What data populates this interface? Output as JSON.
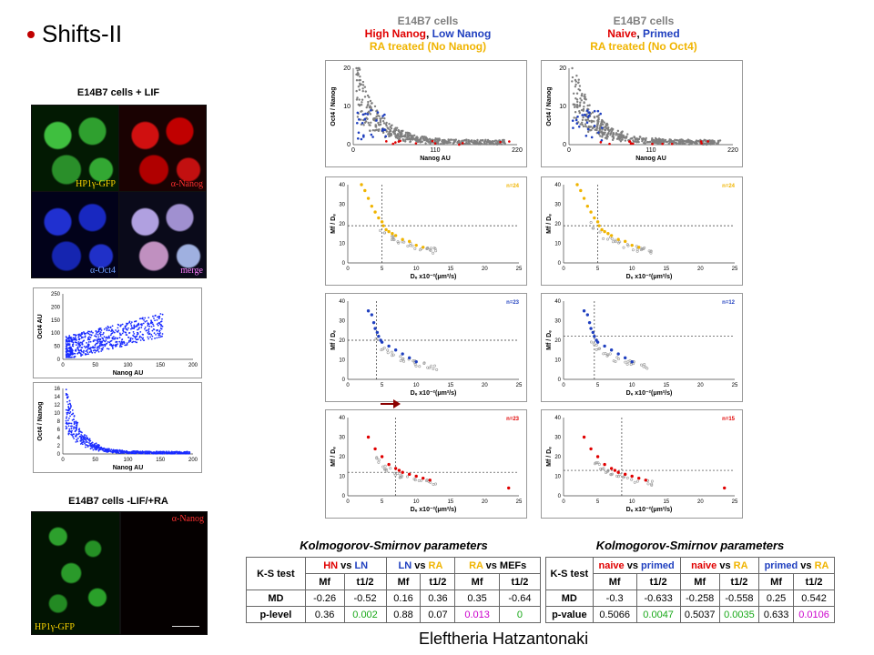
{
  "slide_title": "Shifts-II",
  "left": {
    "top_panel_title": "E14B7 cells + LIF",
    "micro_labels": [
      "HP1γ-GFP",
      "α-Nanog",
      "α-Oct4",
      "merge"
    ],
    "scatter1": {
      "ylabel": "Oct4 AU",
      "xlabel": "Nanog AU",
      "yticks": [
        "0",
        "50",
        "100",
        "150",
        "200",
        "250"
      ],
      "xticks": [
        "0",
        "50",
        "100",
        "150",
        "200"
      ]
    },
    "scatter2": {
      "ylabel": "Oct4 / Nanog",
      "xlabel": "Nanog AU",
      "yticks": [
        "0",
        "2",
        "4",
        "6",
        "8",
        "10",
        "12",
        "14",
        "16"
      ],
      "xticks": [
        "0",
        "50",
        "100",
        "150",
        "200"
      ]
    },
    "bottom_panel_title": "E14B7 cells -LIF/+RA",
    "bottom_labels": [
      "HP1γ-GFP",
      "α-Nanog"
    ]
  },
  "col1_header": {
    "line1": "E14B7 cells",
    "line2a": "High Nanog",
    "line2sep": ", ",
    "line2b": "Low Nanog",
    "line3": "RA treated (No Nanog)"
  },
  "col2_header": {
    "line1": "E14B7 cells",
    "line2a": "Naive",
    "line2sep": ", ",
    "line2b": "Primed",
    "line3": "RA treated (No Oct4)"
  },
  "colors": {
    "gray": "#7f7f7f",
    "red": "#e00000",
    "blue": "#1f3fbf",
    "gold": "#f0b400",
    "green": "#18a818",
    "magenta": "#cc00cc"
  },
  "chart_data": [
    {
      "type": "scatter",
      "id": "c1-ratio",
      "ylabel": "Oct4 / Nanog",
      "xlabel": "Nanog AU",
      "xticks": [
        "0",
        "110",
        "220"
      ],
      "yticks": [
        "0",
        "10",
        "20"
      ]
    },
    {
      "type": "scatter",
      "id": "c2-ratio",
      "ylabel": "Oct4 / Nanog",
      "xlabel": "Nanog AU",
      "xticks": [
        "0",
        "110",
        "220"
      ],
      "yticks": [
        "0",
        "10",
        "20"
      ]
    },
    {
      "type": "scatter",
      "id": "c1-gold",
      "n": "n=24",
      "ylabel": "Mf / Dₑ",
      "xlabel": "Dₑ x10⁻²(μm²/s)",
      "xticks": [
        "0",
        "5",
        "10",
        "15",
        "20",
        "25"
      ],
      "yticks": [
        "0",
        "10",
        "20",
        "30",
        "40"
      ]
    },
    {
      "type": "scatter",
      "id": "c2-gold",
      "n": "n=24",
      "ylabel": "Mf / Dₑ",
      "xlabel": "Dₑ x10⁻²(μm²/s)",
      "xticks": [
        "0",
        "5",
        "10",
        "15",
        "20",
        "25"
      ],
      "yticks": [
        "0",
        "10",
        "20",
        "30",
        "40"
      ]
    },
    {
      "type": "scatter",
      "id": "c1-blue",
      "n": "n=23",
      "ylabel": "Mf / Dₑ",
      "xlabel": "Dₑ x10⁻²(μm²/s)",
      "xticks": [
        "0",
        "5",
        "10",
        "15",
        "20",
        "25"
      ],
      "yticks": [
        "0",
        "10",
        "20",
        "30",
        "40"
      ]
    },
    {
      "type": "scatter",
      "id": "c2-blue",
      "n": "n=12",
      "ylabel": "Mf / Dₑ",
      "xlabel": "Dₑ x10⁻²(μm²/s)",
      "xticks": [
        "0",
        "5",
        "10",
        "15",
        "20",
        "25"
      ],
      "yticks": [
        "0",
        "10",
        "20",
        "30",
        "40"
      ]
    },
    {
      "type": "scatter",
      "id": "c1-red",
      "n": "n=23",
      "ylabel": "Mf / Dₑ",
      "xlabel": "Dₑ x10⁻²(μm²/s)",
      "xticks": [
        "0",
        "5",
        "10",
        "15",
        "20",
        "25"
      ],
      "yticks": [
        "0",
        "10",
        "20",
        "30",
        "40"
      ]
    },
    {
      "type": "scatter",
      "id": "c2-red",
      "n": "n=15",
      "ylabel": "Mf / Dₑ",
      "xlabel": "Dₑ x10⁻²(μm²/s)",
      "xticks": [
        "0",
        "5",
        "10",
        "15",
        "20",
        "25"
      ],
      "yticks": [
        "0",
        "10",
        "20",
        "30",
        "40"
      ]
    }
  ],
  "table1": {
    "caption": "Kolmogorov-Smirnov parameters",
    "corner": "K-S test",
    "groups": [
      {
        "a": "HN",
        "vs": " vs ",
        "b": "LN"
      },
      {
        "a": "LN",
        "vs": " vs ",
        "b": "RA"
      },
      {
        "a": "RA",
        "vs": " vs ",
        "b": "MEFs"
      }
    ],
    "sub": [
      "Mf",
      "t1/2",
      "Mf",
      "t1/2",
      "Mf",
      "t1/2"
    ],
    "rows": [
      {
        "label": "MD",
        "vals": [
          "-0.26",
          "-0.52",
          "0.16",
          "0.36",
          "0.35",
          "-0.64"
        ]
      },
      {
        "label": "p-level",
        "vals": [
          "0.36",
          "0.002",
          "0.88",
          "0.07",
          "0.013",
          "0"
        ]
      }
    ]
  },
  "table2": {
    "caption": "Kolmogorov-Smirnov parameters",
    "corner": "K-S test",
    "groups": [
      {
        "a": "naive",
        "vs": " vs ",
        "b": "primed"
      },
      {
        "a": "naive",
        "vs": " vs ",
        "b": "RA"
      },
      {
        "a": "primed",
        "vs": " vs ",
        "b": "RA"
      }
    ],
    "sub": [
      "Mf",
      "t1/2",
      "Mf",
      "t1/2",
      "Mf",
      "t1/2"
    ],
    "rows": [
      {
        "label": "MD",
        "vals": [
          "-0.3",
          "-0.633",
          "-0.258",
          "-0.558",
          "0.25",
          "0.542"
        ]
      },
      {
        "label": "p-value",
        "vals": [
          "0.5066",
          "0.0047",
          "0.5037",
          "0.0035",
          "0.633",
          "0.0106"
        ]
      }
    ]
  },
  "author": "Eleftheria Hatzantonaki"
}
